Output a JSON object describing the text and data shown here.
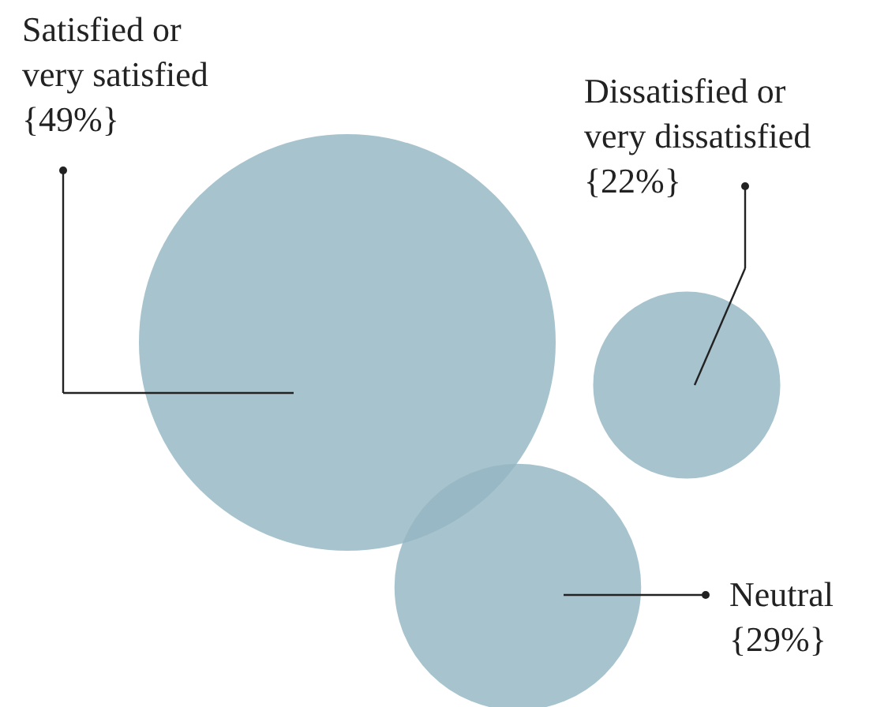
{
  "chart_data": {
    "type": "other",
    "categories": [
      "Satisfied or very satisfied",
      "Dissatisfied or very dissatisfied",
      "Neutral"
    ],
    "values": [
      49,
      22,
      29
    ],
    "value_labels": [
      "{49%}",
      "{22%}",
      "{29%}"
    ],
    "colors": [
      "#94b6c2",
      "#94b6c2",
      "#94b6c2"
    ]
  }
}
